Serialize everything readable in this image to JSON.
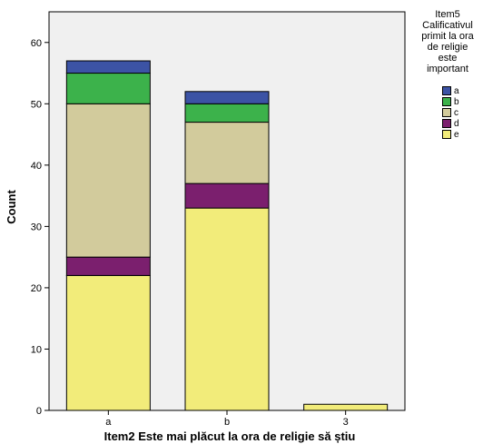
{
  "chart_data": {
    "type": "bar",
    "stacked": true,
    "categories": [
      "a",
      "b",
      "3"
    ],
    "series": [
      {
        "name": "e",
        "color": "#f2ec7a",
        "values": [
          22,
          33,
          1
        ]
      },
      {
        "name": "d",
        "color": "#7b1f6e",
        "values": [
          3,
          4,
          0
        ]
      },
      {
        "name": "c",
        "color": "#d2cb9c",
        "values": [
          25,
          10,
          0
        ]
      },
      {
        "name": "b",
        "color": "#3cb24b",
        "values": [
          5,
          3,
          0
        ]
      },
      {
        "name": "a",
        "color": "#3c53a5",
        "values": [
          2,
          2,
          0
        ]
      }
    ],
    "xlabel": "Item2 Este mai plăcut la ora de religie să știu",
    "ylabel": "Count",
    "ylim": [
      0,
      65
    ],
    "yticks": [
      0,
      10,
      20,
      30,
      40,
      50,
      60
    ],
    "grid": false,
    "background": "#f0f0f0",
    "legend": {
      "placement": "right",
      "title_lines": [
        "Item5",
        "Calificativul",
        "primit la ora",
        "de religie",
        "este",
        "important"
      ],
      "order": [
        "a",
        "b",
        "c",
        "d",
        "e"
      ]
    }
  }
}
